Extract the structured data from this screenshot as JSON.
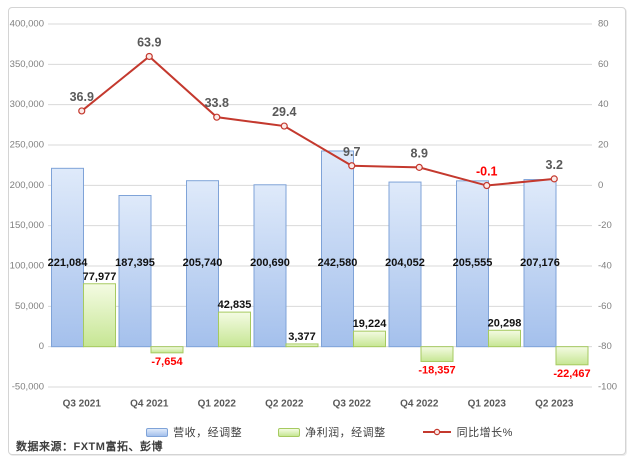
{
  "chart_data": {
    "type": "combo_bar_line",
    "categories": [
      "Q3 2021",
      "Q4 2021",
      "Q1 2022",
      "Q2 2022",
      "Q3 2022",
      "Q4 2022",
      "Q1 2023",
      "Q2 2023"
    ],
    "series": [
      {
        "name": "营收，经调整",
        "type": "bar",
        "axis": "left",
        "values": [
          221084,
          187395,
          205740,
          200690,
          242580,
          204052,
          205555,
          207176
        ],
        "labels": [
          "221,084",
          "187,395",
          "205,740",
          "200,690",
          "242,580",
          "204,052",
          "205,555",
          "207,176"
        ],
        "fill_top": "#dfeafa",
        "fill_bottom": "#a4c0ec",
        "border": "#7fa3d8"
      },
      {
        "name": "净利润，经调整",
        "type": "bar",
        "axis": "left",
        "values": [
          77977,
          -7654,
          42835,
          3377,
          19224,
          -18357,
          20298,
          -22467
        ],
        "labels": [
          "77,977",
          "-7,654",
          "42,835",
          "3,377",
          "19,224",
          "-18,357",
          "20,298",
          "-22,467"
        ],
        "fill_top": "#f4fbe3",
        "fill_bottom": "#c6e693",
        "border": "#a6ca60"
      },
      {
        "name": "同比增长%",
        "type": "line",
        "axis": "right",
        "values": [
          36.9,
          63.9,
          33.8,
          29.4,
          9.7,
          8.9,
          -0.1,
          3.2
        ],
        "labels": [
          "36.9",
          "63.9",
          "33.8",
          "29.4",
          "9.7",
          "8.9",
          "-0.1",
          "3.2"
        ],
        "color": "#c4392e",
        "marker_fill": "#fbeae8"
      }
    ],
    "left_axis": {
      "min": -50000,
      "max": 400000,
      "step": 50000,
      "tick_labels": [
        "400,000",
        "350,000",
        "300,000",
        "250,000",
        "200,000",
        "150,000",
        "100,000",
        "50,000",
        "0",
        "-50,000"
      ]
    },
    "right_axis": {
      "min": -100,
      "max": 80,
      "step": 20,
      "tick_labels": [
        "80",
        "60",
        "40",
        "20",
        "0",
        "-20",
        "-40",
        "-60",
        "-80",
        "-100"
      ]
    },
    "gridlines": "horizontal",
    "legend_position": "bottom",
    "colors": {
      "grid": "#d9d9d9",
      "axis_text": "#7f7f7f",
      "category_text": "#595959",
      "value_label": "#111111",
      "negative_label": "#fe0000",
      "growth_label": "#595959"
    }
  },
  "source_note": "数据来源：FXTM富拓、彭博"
}
